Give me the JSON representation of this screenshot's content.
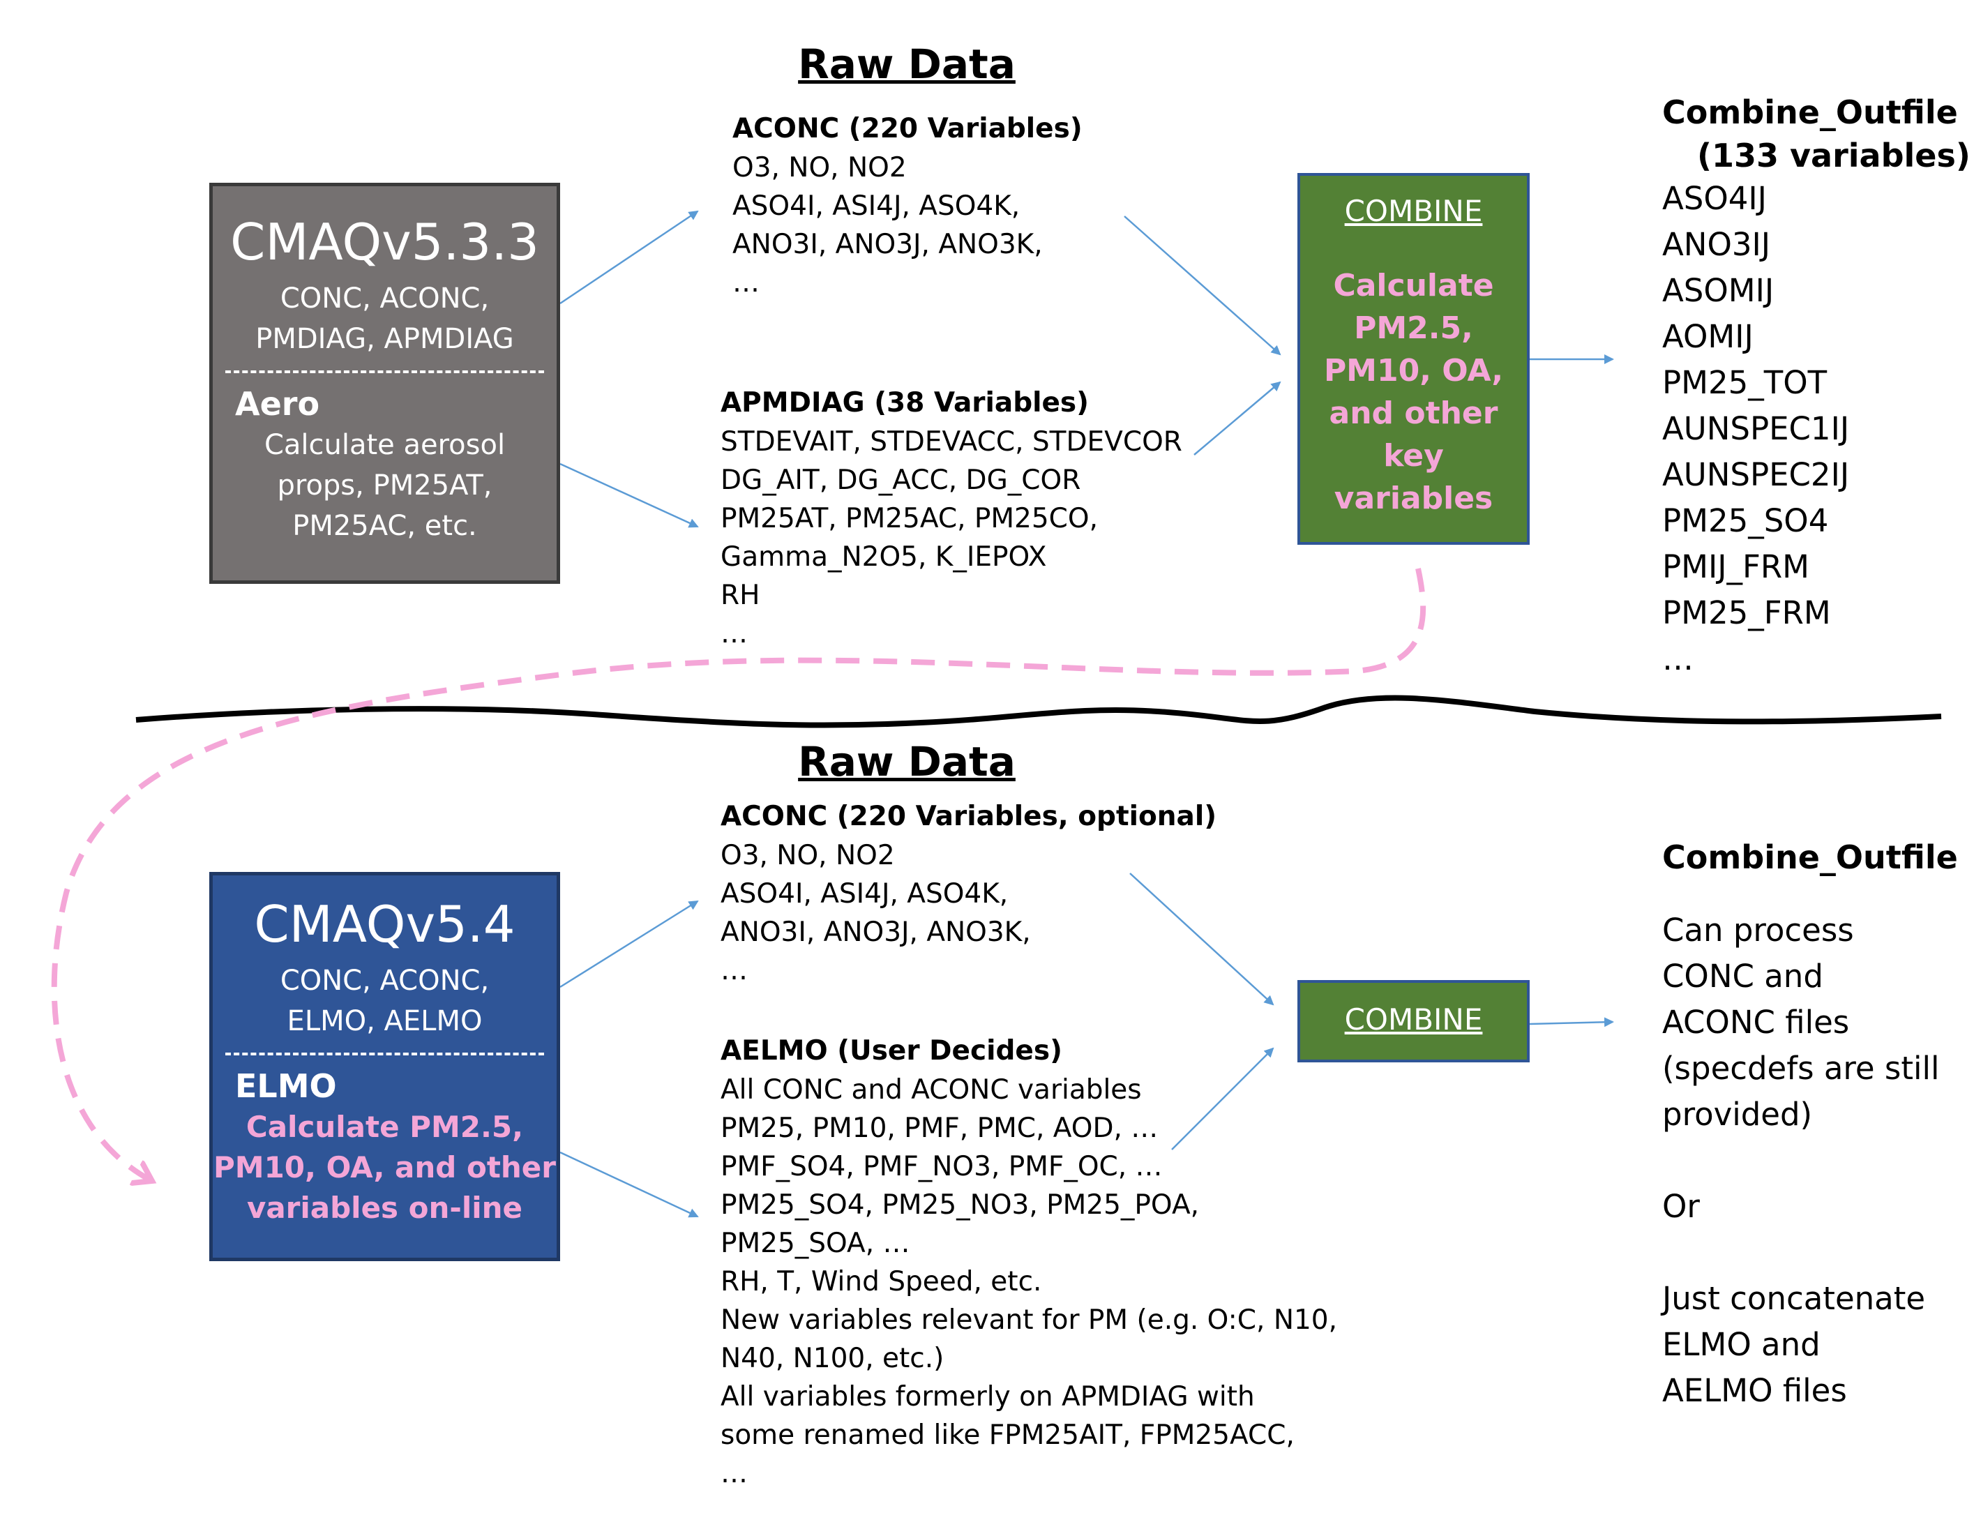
{
  "top": {
    "raw_data_title": "Raw Data",
    "model": {
      "name": "CMAQv5.3.3",
      "files": [
        "CONC, ACONC,",
        "PMDIAG, APMDIAG"
      ],
      "dash": "------------------------",
      "sub_title": "Aero",
      "desc": [
        "Calculate aerosol",
        "props, PM25AT,",
        "PM25AC, etc."
      ],
      "color": "#757171"
    },
    "aconc": {
      "title": "ACONC (220 Variables)",
      "lines": [
        "O3, NO, NO2",
        "ASO4I, ASI4J, ASO4K,",
        "ANO3I, ANO3J, ANO3K,",
        "…"
      ]
    },
    "apmdiag": {
      "title": "APMDIAG (38 Variables)",
      "lines": [
        "STDEVAIT, STDEVACC, STDEVCOR",
        "DG_AIT, DG_ACC, DG_COR",
        "PM25AT, PM25AC, PM25CO,",
        "Gamma_N2O5, K_IEPOX",
        "RH",
        "…"
      ]
    },
    "combine": {
      "label": "COMBINE",
      "desc": [
        "Calculate",
        "PM2.5,",
        "PM10, OA,",
        "and other",
        "key",
        "variables"
      ]
    },
    "outfile": {
      "title_lines": [
        "Combine_Outfile",
        "(133 variables)"
      ],
      "items": [
        "ASO4IJ",
        "ANO3IJ",
        "ASOMIJ",
        "AOMIJ",
        "PM25_TOT",
        "AUNSPEC1IJ",
        "AUNSPEC2IJ",
        "PM25_SO4",
        "PMIJ_FRM",
        "PM25_FRM",
        "…"
      ]
    }
  },
  "bottom": {
    "raw_data_title": "Raw Data",
    "model": {
      "name": "CMAQv5.4",
      "files": [
        "CONC, ACONC,",
        "ELMO, AELMO"
      ],
      "dash": "------------------------",
      "sub_title": "ELMO",
      "desc": [
        "Calculate PM2.5,",
        "PM10, OA, and other",
        "variables on-line"
      ],
      "color": "#2f5597"
    },
    "aconc": {
      "title": "ACONC (220 Variables, optional)",
      "lines": [
        "O3, NO, NO2",
        "ASO4I, ASI4J, ASO4K,",
        "ANO3I, ANO3J, ANO3K,",
        "…"
      ]
    },
    "aelmo": {
      "title": "AELMO (User Decides)",
      "lines": [
        "All CONC and ACONC variables",
        "PM25, PM10, PMF, PMC, AOD, …",
        "PMF_SO4, PMF_NO3, PMF_OC, …",
        "PM25_SO4, PM25_NO3, PM25_POA,",
        "PM25_SOA, …",
        "RH, T, Wind Speed, etc.",
        "New variables relevant for PM (e.g. O:C, N10,",
        "N40, N100, etc.)",
        "All variables formerly on APMDIAG with",
        "some renamed like FPM25AIT, FPM25ACC,",
        "…"
      ]
    },
    "combine": {
      "label": "COMBINE"
    },
    "outfile": {
      "title": "Combine_Outfile",
      "lines": [
        "Can process",
        "CONC and",
        "ACONC files",
        "(specdefs are still",
        "provided)",
        "",
        "Or",
        "",
        "Just concatenate",
        "ELMO and",
        "AELMO files"
      ]
    }
  },
  "colors": {
    "arrow": "#5b9bd5",
    "pink_arrow": "#f4a6d7",
    "combine_green": "#538135",
    "combine_border": "#2f5597"
  }
}
